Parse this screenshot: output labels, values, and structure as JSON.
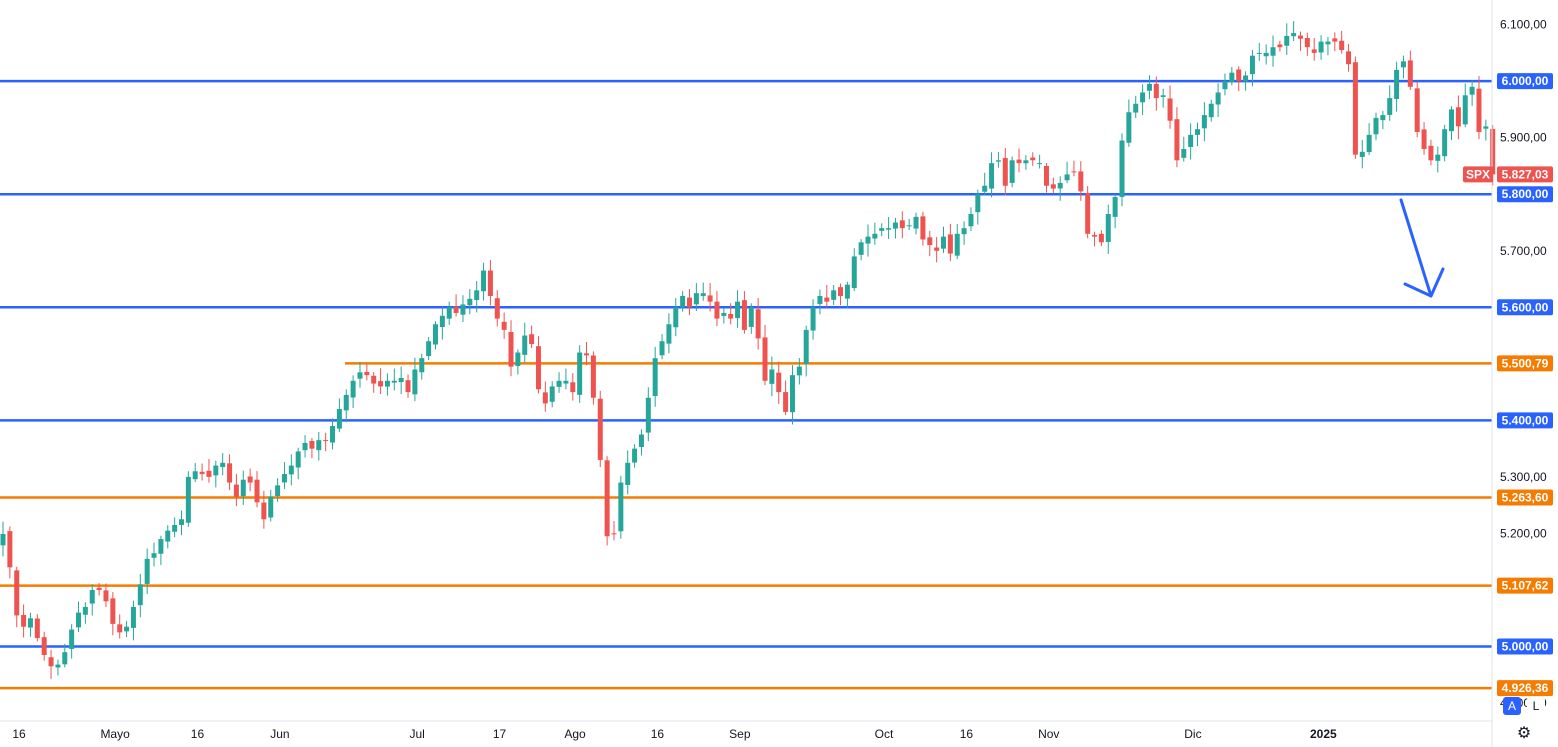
{
  "chart_data": {
    "type": "candlestick",
    "symbol": "SPX",
    "last_price": "5.827,03",
    "y_axis": {
      "range": [
        4870,
        6140
      ],
      "ticks": [
        {
          "value": 6100,
          "label": "6.100,00"
        },
        {
          "value": 5900,
          "label": "5.900,00"
        },
        {
          "value": 5700,
          "label": "5.700,00"
        },
        {
          "value": 5300,
          "label": "5.300,00"
        },
        {
          "value": 5200,
          "label": "5.200,00"
        },
        {
          "value": 4900,
          "label": "4.900,00"
        }
      ]
    },
    "x_axis": {
      "ticks": [
        {
          "index": 0,
          "label": "16"
        },
        {
          "index": 14,
          "label": "Mayo"
        },
        {
          "index": 26,
          "label": "16"
        },
        {
          "index": 38,
          "label": "Jun"
        },
        {
          "index": 58,
          "label": "Jul"
        },
        {
          "index": 70,
          "label": "17"
        },
        {
          "index": 81,
          "label": "Ago"
        },
        {
          "index": 93,
          "label": "16"
        },
        {
          "index": 105,
          "label": "Sep"
        },
        {
          "index": 126,
          "label": "Oct"
        },
        {
          "index": 138,
          "label": "16"
        },
        {
          "index": 150,
          "label": "Nov"
        },
        {
          "index": 171,
          "label": "Dic"
        },
        {
          "index": 190,
          "label": "2025"
        }
      ]
    },
    "horizontal_levels": [
      {
        "value": 6000,
        "label": "6.000,00",
        "color": "#2962ff"
      },
      {
        "value": 5800,
        "label": "5.800,00",
        "color": "#2962ff"
      },
      {
        "value": 5600,
        "label": "5.600,00",
        "color": "#2962ff"
      },
      {
        "value": 5500.79,
        "label": "5.500,79",
        "color": "#f57c00"
      },
      {
        "value": 5400,
        "label": "5.400,00",
        "color": "#2962ff"
      },
      {
        "value": 5263.6,
        "label": "5.263,60",
        "color": "#f57c00"
      },
      {
        "value": 5107.62,
        "label": "5.107,62",
        "color": "#f57c00"
      },
      {
        "value": 5000,
        "label": "5.000,00",
        "color": "#2962ff"
      },
      {
        "value": 4926.36,
        "label": "4.926,36",
        "color": "#f57c00"
      }
    ],
    "colors": {
      "up": "#26a69a",
      "down": "#ef5350",
      "price_tag": "#ef5350",
      "arrow": "#2962ff"
    },
    "annotation": {
      "type": "arrow-down",
      "from": {
        "index": 198,
        "value": 5790
      },
      "to": {
        "index": 203,
        "value": 5620
      }
    },
    "closes": [
      5199,
      5140,
      5055,
      5035,
      5050,
      5015,
      4985,
      4965,
      4968,
      4990,
      5030,
      5060,
      5070,
      5100,
      5100,
      5080,
      5040,
      5025,
      5035,
      5070,
      5110,
      5155,
      5165,
      5190,
      5205,
      5215,
      5225,
      5300,
      5310,
      5305,
      5300,
      5320,
      5325,
      5290,
      5265,
      5295,
      5290,
      5255,
      5225,
      5265,
      5285,
      5305,
      5320,
      5345,
      5360,
      5350,
      5365,
      5365,
      5390,
      5420,
      5445,
      5470,
      5485,
      5480,
      5465,
      5460,
      5470,
      5470,
      5475,
      5450,
      5490,
      5510,
      5540,
      5570,
      5585,
      5600,
      5590,
      5605,
      5615,
      5630,
      5665,
      5620,
      5580,
      5560,
      5495,
      5520,
      5550,
      5535,
      5455,
      5430,
      5460,
      5470,
      5470,
      5450,
      5520,
      5515,
      5440,
      5330,
      5195,
      5200,
      5290,
      5325,
      5350,
      5375,
      5440,
      5510,
      5540,
      5570,
      5600,
      5620,
      5600,
      5625,
      5625,
      5610,
      5580,
      5590,
      5580,
      5610,
      5560,
      5600,
      5545,
      5470,
      5490,
      5450,
      5415,
      5480,
      5495,
      5560,
      5600,
      5620,
      5610,
      5630,
      5620,
      5640,
      5690,
      5715,
      5725,
      5730,
      5740,
      5740,
      5750,
      5740,
      5745,
      5760,
      5720,
      5710,
      5700,
      5725,
      5695,
      5730,
      5740,
      5765,
      5800,
      5815,
      5855,
      5860,
      5815,
      5860,
      5855,
      5860,
      5860,
      5855,
      5815,
      5810,
      5820,
      5835,
      5840,
      5805,
      5730,
      5725,
      5715,
      5765,
      5795,
      5895,
      5945,
      5960,
      5980,
      5995,
      5970,
      5975,
      5930,
      5860,
      5880,
      5905,
      5915,
      5940,
      5960,
      5980,
      6000,
      6015,
      6000,
      6010,
      6045,
      6050,
      6050,
      6060,
      6060,
      6080,
      6085,
      6075,
      6060,
      6050,
      6070,
      6070,
      6070,
      6055,
      6030,
      5870,
      5875,
      5905,
      5935,
      5940,
      5970,
      6020,
      6035,
      5990,
      5910,
      5880,
      5860,
      5870,
      5915,
      5950,
      5920,
      5975,
      5990,
      5910,
      5920,
      5835
    ]
  }
}
